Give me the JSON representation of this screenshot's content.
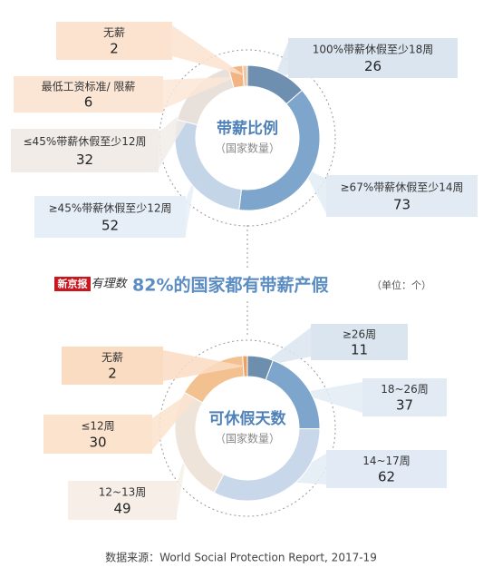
{
  "logo": [
    "新京报",
    "有理数"
  ],
  "headline": "82%的国家都有带薪产假",
  "unit": "（单位：个）",
  "source": "数据来源：World Social Protection Report, 2017-19",
  "chart_data": [
    {
      "type": "pie",
      "title": "带薪比例",
      "subtitle": "（国家数量）",
      "categories": [
        "100%带薪休假至少18周",
        "≥67%带薪休假至少14周",
        "≥45%带薪休假至少12周",
        "≤45%带薪休假至少12周",
        "最低工资标准/ 限薪",
        "无薪"
      ],
      "values": [
        26,
        73,
        52,
        32,
        6,
        2
      ],
      "colors": [
        "#6f8fb0",
        "#7ea6cc",
        "#c5d5e8",
        "#e8e0da",
        "#f1b482",
        "#ecc8a8"
      ]
    },
    {
      "type": "pie",
      "title": "可休假天数",
      "subtitle": "（国家数量）",
      "categories": [
        "≥26周",
        "18~26周",
        "14~17周",
        "12~13周",
        "≤12周",
        "无薪"
      ],
      "values": [
        11,
        37,
        62,
        49,
        30,
        2
      ],
      "colors": [
        "#6e8eae",
        "#7ea6cc",
        "#c8d7ea",
        "#eee4da",
        "#f3c18f",
        "#ee9f62"
      ]
    }
  ]
}
